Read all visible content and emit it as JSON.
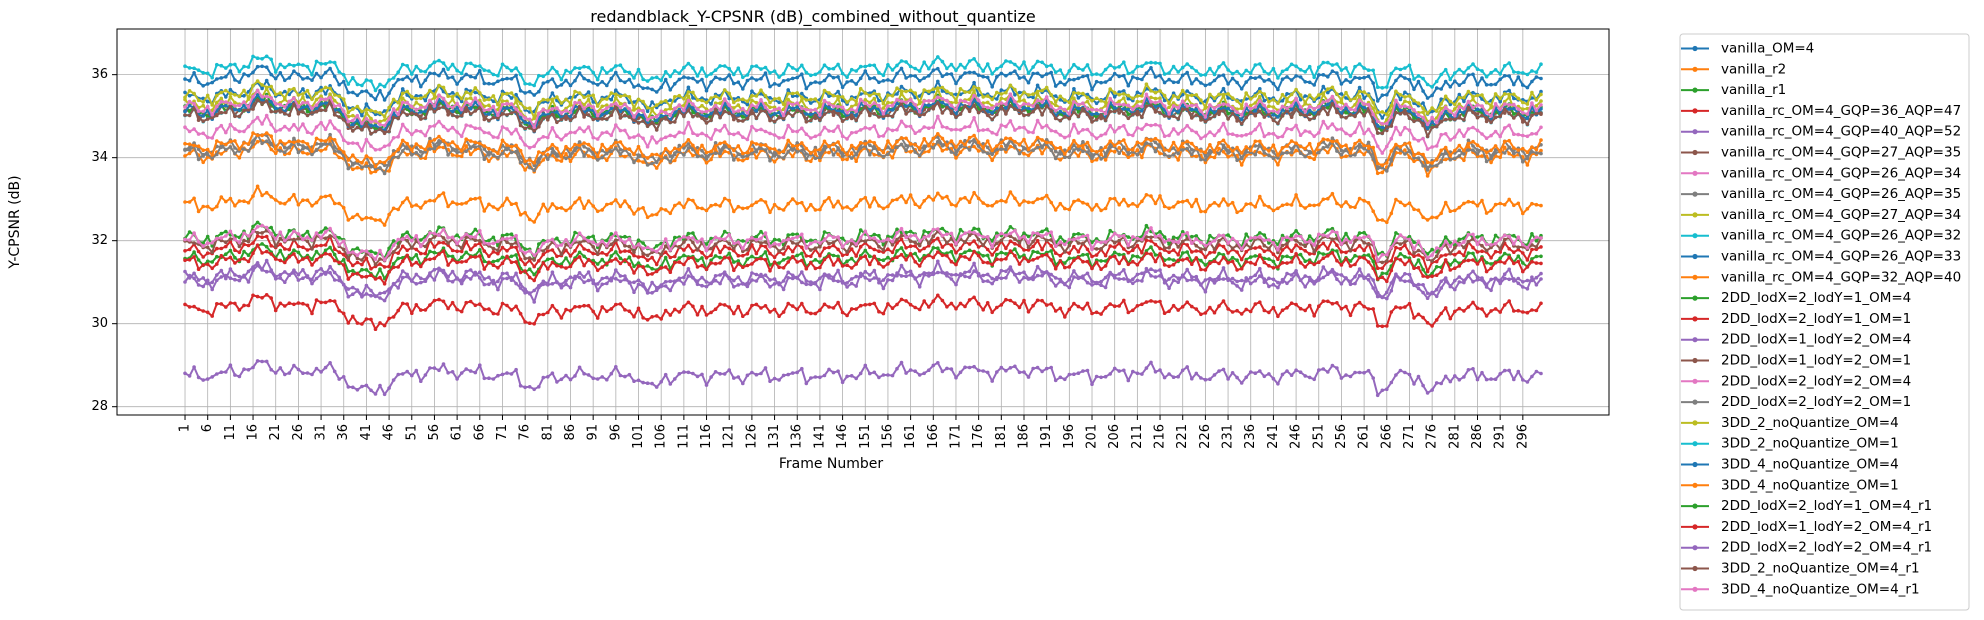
{
  "chart_data": {
    "type": "line",
    "title": "redandblack_Y-CPSNR (dB)_combined_without_quantize",
    "xlabel": "Frame Number",
    "ylabel": "Y-CPSNR (dB)",
    "xlim": [
      -14,
      315
    ],
    "ylim": [
      27.8,
      37.1
    ],
    "x_ticks": [
      1,
      6,
      11,
      16,
      21,
      26,
      31,
      36,
      41,
      46,
      51,
      56,
      61,
      66,
      71,
      76,
      81,
      86,
      91,
      96,
      101,
      106,
      111,
      116,
      121,
      126,
      131,
      136,
      141,
      146,
      151,
      156,
      161,
      166,
      171,
      176,
      181,
      186,
      191,
      196,
      201,
      206,
      211,
      216,
      221,
      226,
      231,
      236,
      241,
      246,
      251,
      256,
      261,
      266,
      271,
      276,
      281,
      286,
      291,
      296
    ],
    "y_ticks": [
      28,
      30,
      32,
      34,
      36
    ],
    "grid": true,
    "legend_position": "outside-right",
    "frames": {
      "start": 1,
      "end": 300
    },
    "series": [
      {
        "name": "vanilla_OM=4",
        "color": "#1f77b4",
        "base": 35.45
      },
      {
        "name": "vanilla_r2",
        "color": "#ff7f0e",
        "base": 34.05
      },
      {
        "name": "vanilla_r1",
        "color": "#2ca02c",
        "base": 32.05
      },
      {
        "name": "vanilla_rc_OM=4_GQP=36_AQP=47",
        "color": "#d62728",
        "base": 30.35
      },
      {
        "name": "vanilla_rc_OM=4_GQP=40_AQP=52",
        "color": "#9467bd",
        "base": 28.75
      },
      {
        "name": "vanilla_rc_OM=4_GQP=27_AQP=35",
        "color": "#8c564b",
        "base": 35.05
      },
      {
        "name": "vanilla_rc_OM=4_GQP=26_AQP=34",
        "color": "#e377c2",
        "base": 34.6
      },
      {
        "name": "vanilla_rc_OM=4_GQP=26_AQP=35",
        "color": "#7f7f7f",
        "base": 34.2
      },
      {
        "name": "vanilla_rc_OM=4_GQP=27_AQP=34",
        "color": "#bcbd22",
        "base": 35.45
      },
      {
        "name": "vanilla_rc_OM=4_GQP=26_AQP=32",
        "color": "#17becf",
        "base": 36.1
      },
      {
        "name": "vanilla_rc_OM=4_GQP=26_AQP=33",
        "color": "#1f77b4",
        "base": 35.85
      },
      {
        "name": "vanilla_rc_OM=4_GQP=32_AQP=40",
        "color": "#ff7f0e",
        "base": 32.85
      },
      {
        "name": "2DD_lodX=2_lodY=1_OM=4",
        "color": "#2ca02c",
        "base": 35.1
      },
      {
        "name": "2DD_lodX=2_lodY=1_OM=1",
        "color": "#d62728",
        "base": 31.75
      },
      {
        "name": "2DD_lodX=1_lodY=2_OM=4",
        "color": "#9467bd",
        "base": 31.0
      },
      {
        "name": "2DD_lodX=1_lodY=2_OM=1",
        "color": "#8c564b",
        "base": 31.9
      },
      {
        "name": "2DD_lodX=2_lodY=2_OM=4",
        "color": "#e377c2",
        "base": 32.0
      },
      {
        "name": "2DD_lodX=2_lodY=2_OM=1",
        "color": "#7f7f7f",
        "base": 34.1
      },
      {
        "name": "3DD_2_noQuantize_OM=4",
        "color": "#bcbd22",
        "base": 35.25
      },
      {
        "name": "3DD_2_noQuantize_OM=1",
        "color": "#17becf",
        "base": 35.0
      },
      {
        "name": "3DD_4_noQuantize_OM=4",
        "color": "#1f77b4",
        "base": 35.1
      },
      {
        "name": "3DD_4_noQuantize_OM=1",
        "color": "#ff7f0e",
        "base": 34.25
      },
      {
        "name": "2DD_lodX=2_lodY=1_OM=4_r1",
        "color": "#2ca02c",
        "base": 31.55
      },
      {
        "name": "2DD_lodX=1_lodY=2_OM=4_r1",
        "color": "#d62728",
        "base": 31.45
      },
      {
        "name": "2DD_lodX=2_lodY=2_OM=4_r1",
        "color": "#9467bd",
        "base": 31.1
      },
      {
        "name": "3DD_2_noQuantize_OM=4_r1",
        "color": "#8c564b",
        "base": 35.0
      },
      {
        "name": "3DD_4_noQuantize_OM=4_r1",
        "color": "#e377c2",
        "base": 35.2
      }
    ]
  }
}
